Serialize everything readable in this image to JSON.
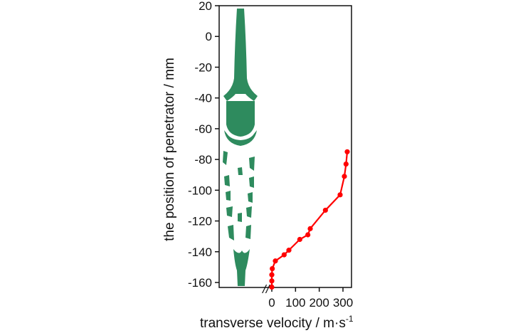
{
  "chart_data": {
    "type": "scatter",
    "title": "",
    "ylabel": "the position of penetrator / mm",
    "xlabel": "transverse velocity / m·s",
    "xlabel_superscript": "-1",
    "ylim": [
      -165,
      20
    ],
    "xlim": [
      -25,
      330
    ],
    "y_ticks": [
      20,
      0,
      -20,
      -40,
      -60,
      -80,
      -100,
      -120,
      -140,
      -160
    ],
    "y_tick_labels": [
      "20",
      "0",
      "-20",
      "-40",
      "-60",
      "-80",
      "-100",
      "-120",
      "-140",
      "-160"
    ],
    "x_ticks": [
      0,
      100,
      200,
      300
    ],
    "x_tick_labels": [
      "0",
      "100",
      "200",
      "300"
    ],
    "axis_break": "//",
    "grid": false,
    "legend": "none",
    "series": [
      {
        "color": "#ff0000",
        "points": [
          {
            "x": 318,
            "y": -75
          },
          {
            "x": 313,
            "y": -83
          },
          {
            "x": 306,
            "y": -91
          },
          {
            "x": 288,
            "y": -103
          },
          {
            "x": 226,
            "y": -113
          },
          {
            "x": 162,
            "y": -125
          },
          {
            "x": 152,
            "y": -129
          },
          {
            "x": 118,
            "y": -132
          },
          {
            "x": 72,
            "y": -139
          },
          {
            "x": 52,
            "y": -142
          },
          {
            "x": 15,
            "y": -146
          },
          {
            "x": 2,
            "y": -151
          },
          {
            "x": 0,
            "y": -155
          },
          {
            "x": 0,
            "y": -159
          },
          {
            "x": 0,
            "y": -163
          }
        ]
      }
    ],
    "penetrator_color": "#2e8b5e"
  }
}
